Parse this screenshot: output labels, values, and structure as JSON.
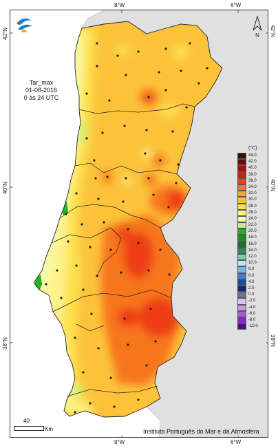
{
  "info": {
    "variable": "Tar_max",
    "date": "01-08-2016",
    "period": "0 às 24 UTC"
  },
  "axes": {
    "top_ticks": [
      "8°W",
      "6°W"
    ],
    "bottom_ticks": [
      "8°W",
      "6°W"
    ],
    "left_ticks": [
      "42°N",
      "40°N",
      "38°N"
    ],
    "right_ticks": [
      "42°N",
      "40°N",
      "38°N"
    ]
  },
  "legend": {
    "unit": "(°C)",
    "entries": [
      {
        "label": "44.0",
        "color": "#3d0a05"
      },
      {
        "label": "42.0",
        "color": "#6b0c08"
      },
      {
        "label": "40.0",
        "color": "#a31010"
      },
      {
        "label": "38.0",
        "color": "#d81b12"
      },
      {
        "label": "36.0",
        "color": "#ef3e17"
      },
      {
        "label": "34.0",
        "color": "#f7761f"
      },
      {
        "label": "32.0",
        "color": "#fba42a"
      },
      {
        "label": "30.0",
        "color": "#fcc33a"
      },
      {
        "label": "28.0",
        "color": "#fde04c"
      },
      {
        "label": "26.0",
        "color": "#fff28a"
      },
      {
        "label": "24.0",
        "color": "#f4fbb0"
      },
      {
        "label": "22.0",
        "color": "#c8ee7a"
      },
      {
        "label": "20.0",
        "color": "#22b026"
      },
      {
        "label": "18.0",
        "color": "#1e8a23"
      },
      {
        "label": "16.0",
        "color": "#1f6e2a"
      },
      {
        "label": "14.0",
        "color": "#2e8b66"
      },
      {
        "label": "12.0",
        "color": "#6fcfb3"
      },
      {
        "label": "10.0",
        "color": "#bfe4f4"
      },
      {
        "label": "8.0",
        "color": "#78b4e4"
      },
      {
        "label": "6.0",
        "color": "#3f7fd0"
      },
      {
        "label": "4.0",
        "color": "#1f4aa8"
      },
      {
        "label": "2.0",
        "color": "#12277a"
      },
      {
        "label": "0.0",
        "color": "#6f7494"
      },
      {
        "label": "-2.0",
        "color": "#d8c2ee"
      },
      {
        "label": "-4.0",
        "color": "#c39ae7"
      },
      {
        "label": "-6.0",
        "color": "#a55be0"
      },
      {
        "label": "-8.0",
        "color": "#9220d6"
      },
      {
        "label": "-10.0",
        "color": "#4a1280"
      }
    ]
  },
  "scale_bar": {
    "value": "40",
    "unit": "Km"
  },
  "north_label": "N",
  "credit": "Instituto Português do Mar e da Atmosfera",
  "colors": {
    "land_other": "#e0e0e0",
    "sea": "#ffffff",
    "border": "#333333"
  }
}
